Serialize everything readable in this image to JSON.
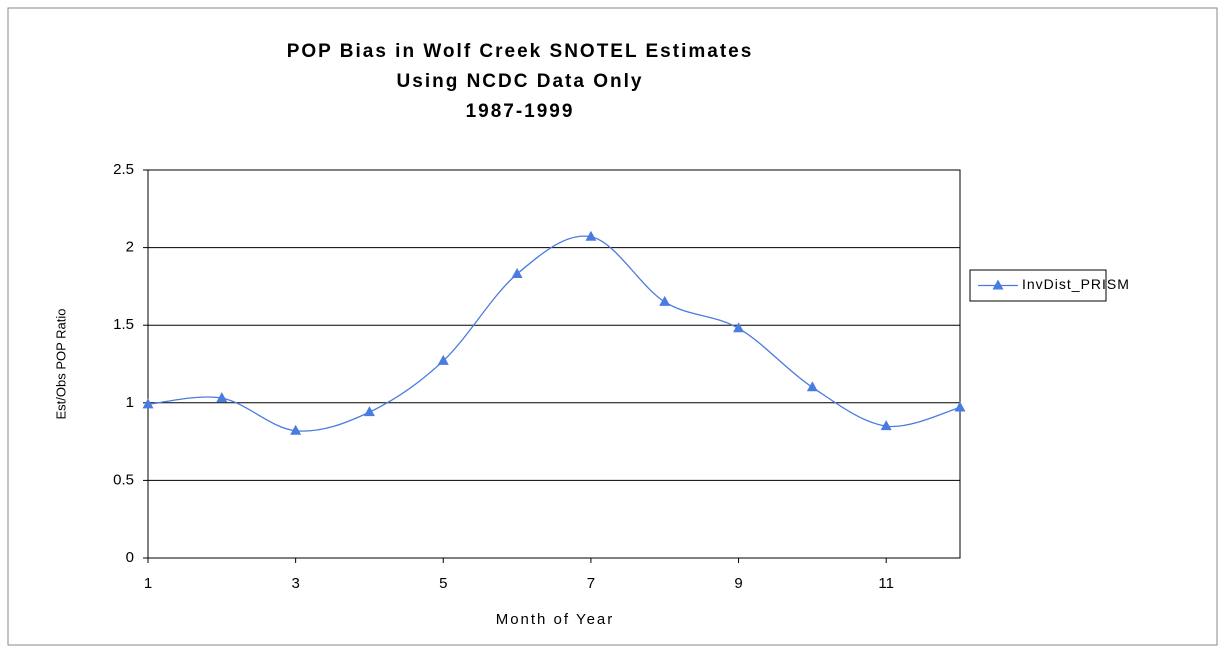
{
  "chart_data": {
    "type": "line",
    "title": [
      "POP Bias in Wolf Creek SNOTEL Estimates",
      "Using NCDC Data Only",
      "1987-1999"
    ],
    "x_label": "Month of Year",
    "y_label": "Est/Obs POP Ratio",
    "x": [
      1,
      2,
      3,
      4,
      5,
      6,
      7,
      8,
      9,
      10,
      11,
      12
    ],
    "series": [
      {
        "name": "InvDist_PRISM",
        "color": "#4a7be0",
        "values": [
          0.99,
          1.03,
          0.82,
          0.94,
          1.27,
          1.83,
          2.07,
          1.65,
          1.48,
          1.1,
          0.85,
          0.97
        ]
      }
    ],
    "xlim": [
      1,
      12
    ],
    "xticks": [
      1,
      3,
      5,
      7,
      9,
      11
    ],
    "ylim": [
      0,
      2.5
    ],
    "yticks": [
      0,
      0.5,
      1,
      1.5,
      2,
      2.5
    ],
    "grid": true,
    "smooth": true,
    "legend": "right"
  }
}
